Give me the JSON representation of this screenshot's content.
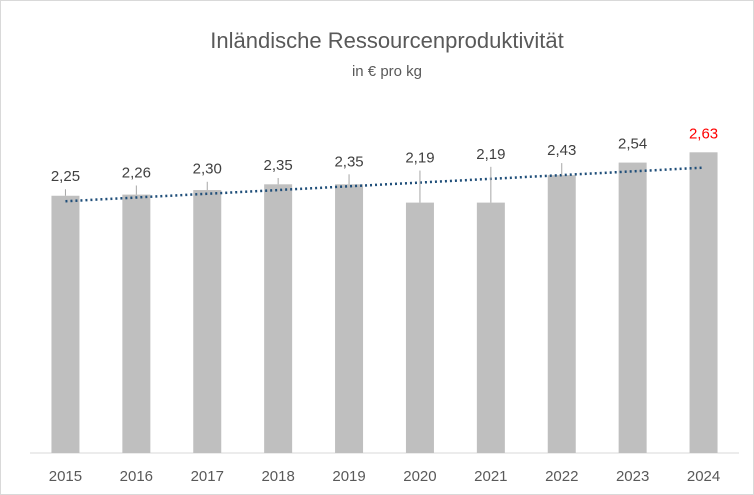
{
  "chart_data": {
    "type": "bar",
    "title": "Inländische Ressourcenproduktivität",
    "subtitle": "in € pro kg",
    "categories": [
      "2015",
      "2016",
      "2017",
      "2018",
      "2019",
      "2020",
      "2021",
      "2022",
      "2023",
      "2024"
    ],
    "values": [
      2.25,
      2.26,
      2.3,
      2.35,
      2.35,
      2.19,
      2.19,
      2.43,
      2.54,
      2.63
    ],
    "value_labels": [
      "2,25",
      "2,26",
      "2,30",
      "2,35",
      "2,35",
      "2,19",
      "2,19",
      "2,43",
      "2,54",
      "2,63"
    ],
    "value_label_colors": [
      "#404040",
      "#404040",
      "#404040",
      "#404040",
      "#404040",
      "#404040",
      "#404040",
      "#404040",
      "#404040",
      "#ff0000"
    ],
    "color": "#bfbfbf",
    "trendline": true,
    "trendline_color": "#1f4e79",
    "ylim": [
      0,
      3
    ]
  }
}
